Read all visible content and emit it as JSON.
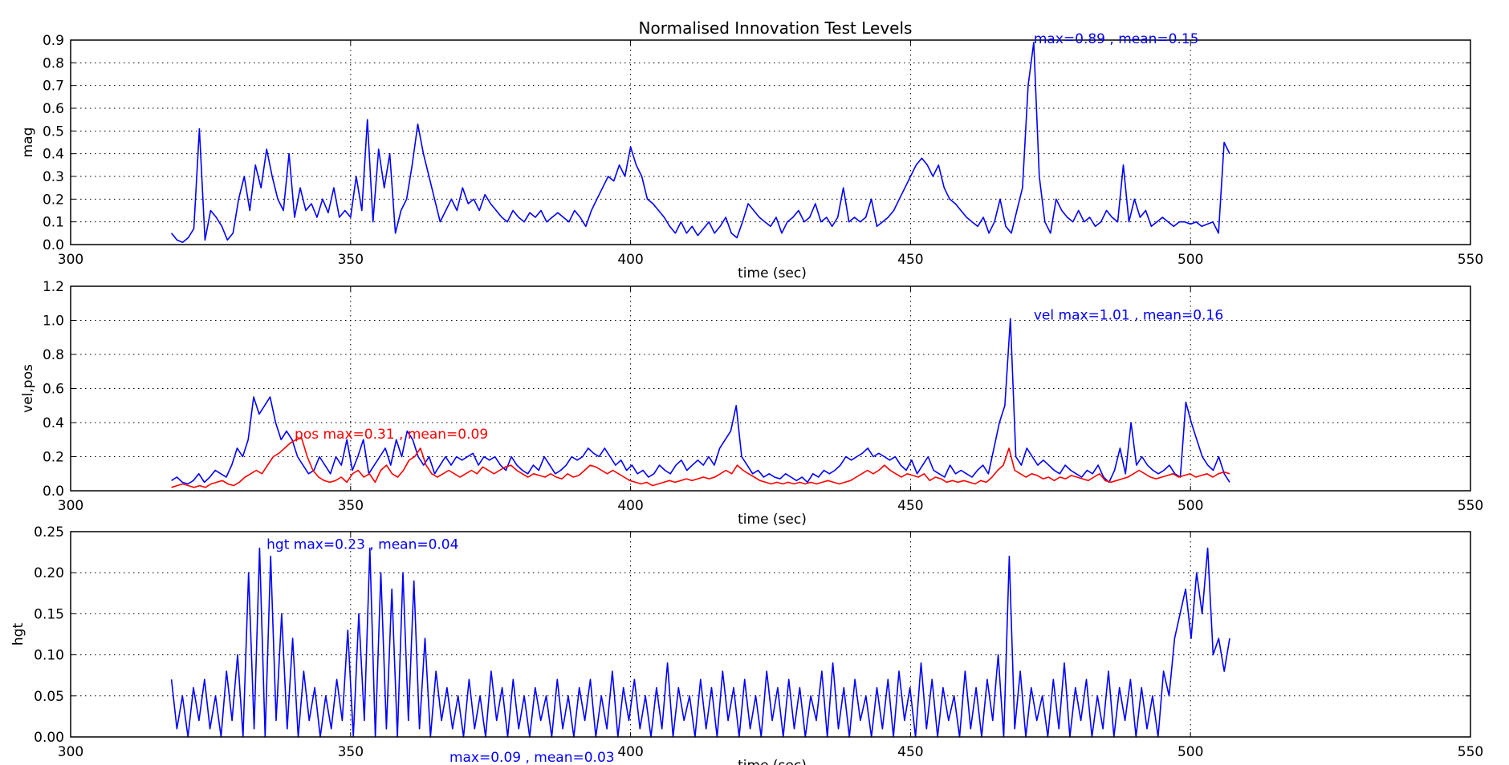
{
  "title": "Normalised Innovation Test Levels",
  "chart_data": [
    {
      "type": "line",
      "xlabel": "time (sec)",
      "ylabel": "mag",
      "xlim": [
        300,
        550
      ],
      "ylim": [
        0,
        0.9
      ],
      "xticks": [
        "300",
        "350",
        "400",
        "450",
        "500",
        "550"
      ],
      "yticks": [
        "0.0",
        "0.1",
        "0.2",
        "0.3",
        "0.4",
        "0.5",
        "0.6",
        "0.7",
        "0.8",
        "0.9"
      ],
      "grid": true,
      "series": [
        {
          "color": "#0000ff",
          "x_range": [
            318,
            507
          ],
          "values": [
            0.05,
            0.02,
            0.01,
            0.03,
            0.07,
            0.51,
            0.02,
            0.15,
            0.12,
            0.08,
            0.02,
            0.05,
            0.2,
            0.3,
            0.15,
            0.35,
            0.25,
            0.42,
            0.3,
            0.2,
            0.15,
            0.4,
            0.12,
            0.25,
            0.15,
            0.18,
            0.12,
            0.2,
            0.14,
            0.25,
            0.12,
            0.15,
            0.12,
            0.3,
            0.15,
            0.55,
            0.1,
            0.42,
            0.25,
            0.4,
            0.05,
            0.15,
            0.2,
            0.35,
            0.53,
            0.4,
            0.3,
            0.2,
            0.1,
            0.15,
            0.2,
            0.15,
            0.25,
            0.18,
            0.2,
            0.15,
            0.22,
            0.18,
            0.15,
            0.12,
            0.1,
            0.15,
            0.12,
            0.1,
            0.14,
            0.12,
            0.15,
            0.1,
            0.12,
            0.14,
            0.12,
            0.1,
            0.15,
            0.12,
            0.08,
            0.15,
            0.2,
            0.25,
            0.3,
            0.28,
            0.35,
            0.3,
            0.43,
            0.35,
            0.3,
            0.2,
            0.18,
            0.15,
            0.12,
            0.08,
            0.05,
            0.1,
            0.05,
            0.08,
            0.04,
            0.07,
            0.1,
            0.05,
            0.08,
            0.12,
            0.05,
            0.03,
            0.1,
            0.18,
            0.15,
            0.12,
            0.1,
            0.08,
            0.12,
            0.05,
            0.1,
            0.12,
            0.15,
            0.1,
            0.12,
            0.18,
            0.1,
            0.12,
            0.08,
            0.12,
            0.25,
            0.1,
            0.12,
            0.1,
            0.12,
            0.2,
            0.08,
            0.1,
            0.12,
            0.15,
            0.2,
            0.25,
            0.3,
            0.35,
            0.38,
            0.35,
            0.3,
            0.35,
            0.25,
            0.2,
            0.18,
            0.15,
            0.12,
            0.1,
            0.08,
            0.12,
            0.05,
            0.1,
            0.2,
            0.08,
            0.05,
            0.15,
            0.25,
            0.7,
            0.89,
            0.3,
            0.1,
            0.05,
            0.2,
            0.15,
            0.12,
            0.1,
            0.15,
            0.1,
            0.12,
            0.08,
            0.1,
            0.15,
            0.12,
            0.1,
            0.35,
            0.1,
            0.2,
            0.12,
            0.15,
            0.08,
            0.1,
            0.12,
            0.1,
            0.08,
            0.1,
            0.1,
            0.09,
            0.1,
            0.08,
            0.09,
            0.1,
            0.05,
            0.45,
            0.4
          ]
        }
      ],
      "annotations": [
        {
          "text": "max=0.89 , mean=0.15",
          "color": "#0000ff",
          "at": [
            472,
            0.89
          ]
        }
      ]
    },
    {
      "type": "line",
      "xlabel": "time (sec)",
      "ylabel": "vel,pos",
      "xlim": [
        300,
        550
      ],
      "ylim": [
        0,
        1.2
      ],
      "xticks": [
        "300",
        "350",
        "400",
        "450",
        "500",
        "550"
      ],
      "yticks": [
        "0.0",
        "0.2",
        "0.4",
        "0.6",
        "0.8",
        "1.0",
        "1.2"
      ],
      "grid": true,
      "series": [
        {
          "color": "#0000ff",
          "x_range": [
            318,
            507
          ],
          "values": [
            0.06,
            0.08,
            0.05,
            0.04,
            0.06,
            0.1,
            0.05,
            0.08,
            0.12,
            0.1,
            0.08,
            0.15,
            0.25,
            0.2,
            0.3,
            0.55,
            0.45,
            0.5,
            0.55,
            0.4,
            0.3,
            0.35,
            0.3,
            0.2,
            0.15,
            0.1,
            0.12,
            0.2,
            0.15,
            0.1,
            0.2,
            0.15,
            0.3,
            0.12,
            0.2,
            0.3,
            0.1,
            0.15,
            0.2,
            0.25,
            0.15,
            0.3,
            0.2,
            0.35,
            0.3,
            0.2,
            0.15,
            0.2,
            0.1,
            0.15,
            0.2,
            0.15,
            0.2,
            0.18,
            0.2,
            0.22,
            0.15,
            0.2,
            0.18,
            0.2,
            0.15,
            0.12,
            0.2,
            0.15,
            0.12,
            0.1,
            0.15,
            0.12,
            0.2,
            0.15,
            0.1,
            0.12,
            0.15,
            0.2,
            0.18,
            0.2,
            0.25,
            0.22,
            0.2,
            0.25,
            0.2,
            0.15,
            0.18,
            0.12,
            0.15,
            0.1,
            0.12,
            0.08,
            0.1,
            0.15,
            0.12,
            0.1,
            0.15,
            0.18,
            0.12,
            0.15,
            0.18,
            0.15,
            0.2,
            0.15,
            0.25,
            0.3,
            0.35,
            0.5,
            0.2,
            0.15,
            0.1,
            0.12,
            0.08,
            0.1,
            0.08,
            0.07,
            0.1,
            0.08,
            0.06,
            0.08,
            0.05,
            0.1,
            0.08,
            0.12,
            0.1,
            0.12,
            0.15,
            0.2,
            0.18,
            0.2,
            0.22,
            0.25,
            0.2,
            0.22,
            0.2,
            0.18,
            0.2,
            0.15,
            0.12,
            0.18,
            0.1,
            0.15,
            0.2,
            0.12,
            0.1,
            0.08,
            0.15,
            0.1,
            0.12,
            0.1,
            0.08,
            0.12,
            0.15,
            0.1,
            0.25,
            0.4,
            0.5,
            1.01,
            0.2,
            0.15,
            0.25,
            0.2,
            0.15,
            0.18,
            0.15,
            0.12,
            0.1,
            0.15,
            0.12,
            0.1,
            0.08,
            0.12,
            0.1,
            0.15,
            0.08,
            0.05,
            0.12,
            0.25,
            0.1,
            0.4,
            0.15,
            0.2,
            0.15,
            0.12,
            0.1,
            0.12,
            0.15,
            0.1,
            0.08,
            0.52,
            0.4,
            0.3,
            0.2,
            0.15,
            0.12,
            0.2,
            0.1,
            0.05
          ]
        },
        {
          "color": "#ff0000",
          "x_range": [
            318,
            507
          ],
          "values": [
            0.02,
            0.03,
            0.04,
            0.03,
            0.02,
            0.03,
            0.02,
            0.04,
            0.05,
            0.06,
            0.04,
            0.03,
            0.05,
            0.08,
            0.1,
            0.12,
            0.1,
            0.15,
            0.2,
            0.22,
            0.25,
            0.28,
            0.3,
            0.31,
            0.2,
            0.12,
            0.08,
            0.06,
            0.05,
            0.06,
            0.08,
            0.05,
            0.1,
            0.12,
            0.08,
            0.1,
            0.05,
            0.12,
            0.15,
            0.1,
            0.08,
            0.12,
            0.18,
            0.2,
            0.25,
            0.15,
            0.1,
            0.08,
            0.1,
            0.12,
            0.1,
            0.08,
            0.1,
            0.12,
            0.1,
            0.14,
            0.12,
            0.1,
            0.12,
            0.14,
            0.15,
            0.12,
            0.1,
            0.08,
            0.1,
            0.09,
            0.08,
            0.1,
            0.08,
            0.07,
            0.1,
            0.08,
            0.09,
            0.12,
            0.15,
            0.14,
            0.12,
            0.1,
            0.12,
            0.1,
            0.08,
            0.06,
            0.05,
            0.04,
            0.05,
            0.03,
            0.04,
            0.05,
            0.06,
            0.05,
            0.06,
            0.07,
            0.06,
            0.07,
            0.08,
            0.07,
            0.08,
            0.1,
            0.12,
            0.1,
            0.15,
            0.12,
            0.1,
            0.08,
            0.06,
            0.05,
            0.04,
            0.05,
            0.04,
            0.05,
            0.04,
            0.05,
            0.04,
            0.05,
            0.04,
            0.05,
            0.06,
            0.05,
            0.04,
            0.05,
            0.06,
            0.08,
            0.1,
            0.12,
            0.1,
            0.12,
            0.15,
            0.12,
            0.1,
            0.08,
            0.1,
            0.09,
            0.08,
            0.1,
            0.06,
            0.08,
            0.07,
            0.05,
            0.06,
            0.05,
            0.06,
            0.05,
            0.04,
            0.06,
            0.05,
            0.08,
            0.12,
            0.15,
            0.25,
            0.12,
            0.1,
            0.08,
            0.1,
            0.09,
            0.07,
            0.08,
            0.06,
            0.08,
            0.07,
            0.09,
            0.08,
            0.07,
            0.06,
            0.08,
            0.1,
            0.06,
            0.05,
            0.06,
            0.07,
            0.08,
            0.1,
            0.12,
            0.1,
            0.08,
            0.07,
            0.08,
            0.09,
            0.1,
            0.08,
            0.09,
            0.1,
            0.08,
            0.09,
            0.1,
            0.08,
            0.1,
            0.11,
            0.1
          ]
        }
      ],
      "annotations": [
        {
          "text": "vel max=1.01 , mean=0.16",
          "color": "#0000ff",
          "at": [
            472,
            1.01
          ]
        },
        {
          "text": "pos max=0.31 , mean=0.09",
          "color": "#ff0000",
          "at": [
            340,
            0.31
          ]
        }
      ]
    },
    {
      "type": "line",
      "xlabel": "time (sec)",
      "ylabel": "hgt",
      "xlim": [
        300,
        550
      ],
      "ylim": [
        0,
        0.25
      ],
      "xticks": [
        "300",
        "350",
        "400",
        "450",
        "500",
        "550"
      ],
      "yticks": [
        "0.00",
        "0.05",
        "0.10",
        "0.15",
        "0.20",
        "0.25"
      ],
      "grid": true,
      "series": [
        {
          "color": "#0000ff",
          "x_range": [
            318,
            507
          ],
          "values": [
            0.07,
            0.01,
            0.05,
            0.0,
            0.06,
            0.02,
            0.07,
            0.01,
            0.05,
            0.0,
            0.08,
            0.02,
            0.1,
            0.0,
            0.2,
            0.01,
            0.23,
            0.0,
            0.22,
            0.02,
            0.15,
            0.01,
            0.12,
            0.0,
            0.08,
            0.02,
            0.06,
            0.0,
            0.05,
            0.01,
            0.07,
            0.02,
            0.13,
            0.0,
            0.15,
            0.02,
            0.23,
            0.0,
            0.2,
            0.01,
            0.18,
            0.0,
            0.2,
            0.02,
            0.19,
            0.01,
            0.12,
            0.0,
            0.08,
            0.02,
            0.06,
            0.01,
            0.05,
            0.0,
            0.07,
            0.01,
            0.05,
            0.0,
            0.08,
            0.02,
            0.06,
            0.0,
            0.07,
            0.01,
            0.05,
            0.0,
            0.06,
            0.02,
            0.05,
            0.0,
            0.07,
            0.01,
            0.05,
            0.0,
            0.06,
            0.02,
            0.07,
            0.0,
            0.05,
            0.01,
            0.08,
            0.0,
            0.06,
            0.02,
            0.07,
            0.01,
            0.05,
            0.0,
            0.06,
            0.01,
            0.09,
            0.0,
            0.06,
            0.02,
            0.05,
            0.0,
            0.07,
            0.01,
            0.06,
            0.0,
            0.08,
            0.02,
            0.06,
            0.0,
            0.07,
            0.01,
            0.05,
            0.0,
            0.08,
            0.02,
            0.06,
            0.0,
            0.07,
            0.01,
            0.06,
            0.0,
            0.05,
            0.02,
            0.08,
            0.0,
            0.09,
            0.01,
            0.06,
            0.0,
            0.07,
            0.02,
            0.05,
            0.0,
            0.06,
            0.01,
            0.07,
            0.0,
            0.08,
            0.02,
            0.06,
            0.0,
            0.09,
            0.01,
            0.07,
            0.0,
            0.06,
            0.02,
            0.05,
            0.0,
            0.08,
            0.01,
            0.06,
            0.0,
            0.07,
            0.02,
            0.1,
            0.0,
            0.22,
            0.01,
            0.08,
            0.0,
            0.06,
            0.02,
            0.05,
            0.0,
            0.07,
            0.01,
            0.09,
            0.0,
            0.06,
            0.02,
            0.07,
            0.0,
            0.05,
            0.01,
            0.08,
            0.0,
            0.06,
            0.02,
            0.07,
            0.0,
            0.06,
            0.01,
            0.05,
            0.0,
            0.08,
            0.05,
            0.12,
            0.15,
            0.18,
            0.12,
            0.2,
            0.15,
            0.23,
            0.1,
            0.12,
            0.08,
            0.12
          ]
        }
      ],
      "annotations": [
        {
          "text": "hgt max=0.23 , mean=0.04",
          "color": "#0000ff",
          "at": [
            335,
            0.23
          ]
        },
        {
          "text": "max=0.09 , mean=0.03",
          "color": "#0000ff",
          "at": [
            402,
            -0.045
          ]
        }
      ]
    }
  ]
}
